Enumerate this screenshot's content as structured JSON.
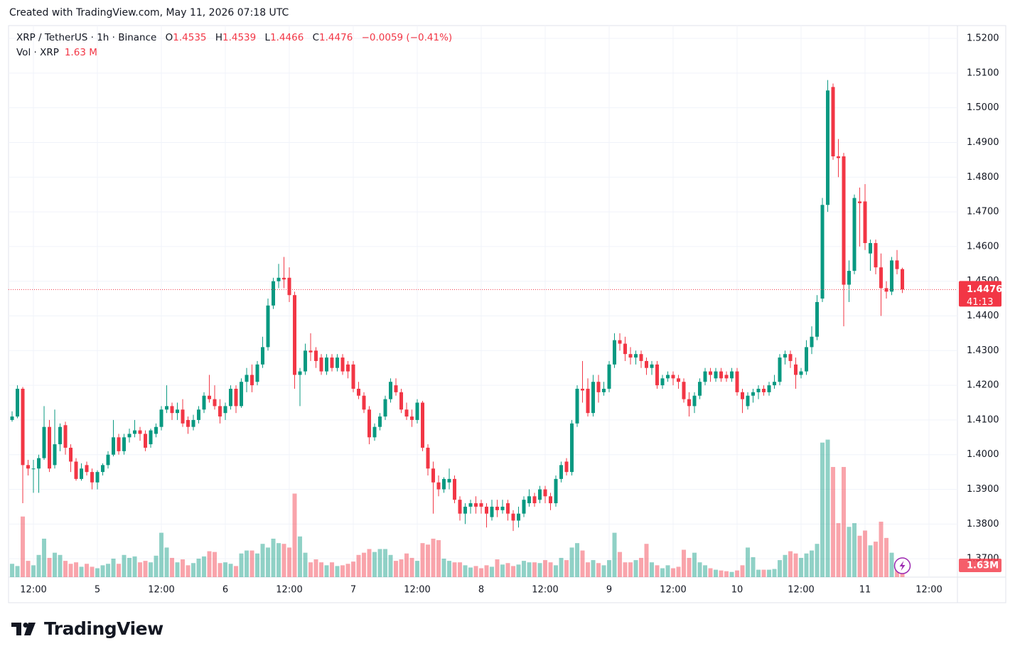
{
  "created": "Created with TradingView.com, May 11, 2026 07:18 UTC",
  "brand": "TradingView",
  "chart_data": {
    "type": "candlestick",
    "symbol": "XRP / TetherUS · 1h · Binance",
    "legend": {
      "o": "O",
      "h": "H",
      "l": "L",
      "c": "C",
      "change": "−0.0059 (−0.41%)"
    },
    "volume_title": "Vol · XRP",
    "volume_legend_value": "1.63 M",
    "volume_badge": "1.63M",
    "countdown": "41:13",
    "up_color": "#089981",
    "down_color": "#f23645",
    "grid": true,
    "open": [
      1.41,
      1.411,
      1.419,
      1.397,
      1.396,
      1.396,
      1.399,
      1.408,
      1.397,
      1.403,
      1.4085,
      1.402,
      1.398,
      1.393,
      1.397,
      1.395,
      1.392,
      1.395,
      1.397,
      1.4,
      1.405,
      1.401,
      1.405,
      1.406,
      1.407,
      1.406,
      1.403,
      1.406,
      1.408,
      1.413,
      1.414,
      1.412,
      1.413,
      1.41,
      1.408,
      1.41,
      1.413,
      1.417,
      1.416,
      1.414,
      1.412,
      1.414,
      1.419,
      1.414,
      1.421,
      1.423,
      1.421,
      1.426,
      1.431,
      1.443,
      1.45,
      1.451,
      1.451,
      1.446,
      1.423,
      1.424,
      1.43,
      1.43,
      1.428,
      1.424,
      1.428,
      1.425,
      1.428,
      1.426,
      1.426,
      1.419,
      1.417,
      1.413,
      1.405,
      1.408,
      1.411,
      1.416,
      1.42,
      1.418,
      1.413,
      1.411,
      1.41,
      1.415,
      1.402,
      1.396,
      1.392,
      1.39,
      1.392,
      1.393,
      1.387,
      1.383,
      1.385,
      1.386,
      1.386,
      1.385,
      1.382,
      1.385,
      1.384,
      1.386,
      1.383,
      1.381,
      1.383,
      1.386,
      1.388,
      1.387,
      1.39,
      1.388,
      1.386,
      1.393,
      1.398,
      1.395,
      1.409,
      1.419,
      1.419,
      1.412,
      1.421,
      1.418,
      1.419,
      1.426,
      1.433,
      1.432,
      1.429,
      1.428,
      1.429,
      1.427,
      1.425,
      1.426,
      1.42,
      1.422,
      1.423,
      1.422,
      1.421,
      1.416,
      1.414,
      1.417,
      1.421,
      1.424,
      1.422,
      1.424,
      1.423,
      1.422,
      1.424,
      1.418,
      1.414,
      1.417,
      1.418,
      1.419,
      1.418,
      1.42,
      1.421,
      1.428,
      1.429,
      1.426,
      1.423,
      1.424,
      1.431,
      1.434,
      1.445,
      1.472,
      1.506,
      1.486,
      1.486,
      1.449,
      1.453,
      1.473,
      1.473,
      1.458,
      1.461,
      1.454,
      1.448,
      1.447,
      1.456,
      1.4535
    ],
    "high": [
      1.4125,
      1.42,
      1.4195,
      1.3985,
      1.3985,
      1.4,
      1.414,
      1.41,
      1.413,
      1.409,
      1.4095,
      1.403,
      1.399,
      1.3975,
      1.398,
      1.396,
      1.3955,
      1.3975,
      1.401,
      1.41,
      1.406,
      1.406,
      1.4075,
      1.41,
      1.408,
      1.407,
      1.4075,
      1.409,
      1.414,
      1.42,
      1.415,
      1.415,
      1.416,
      1.411,
      1.4115,
      1.414,
      1.418,
      1.423,
      1.42,
      1.416,
      1.415,
      1.42,
      1.42,
      1.422,
      1.425,
      1.426,
      1.427,
      1.434,
      1.445,
      1.451,
      1.455,
      1.457,
      1.454,
      1.447,
      1.425,
      1.432,
      1.435,
      1.431,
      1.429,
      1.429,
      1.429,
      1.429,
      1.429,
      1.427,
      1.427,
      1.421,
      1.418,
      1.414,
      1.409,
      1.412,
      1.417,
      1.422,
      1.422,
      1.419,
      1.415,
      1.413,
      1.416,
      1.4155,
      1.403,
      1.398,
      1.394,
      1.3935,
      1.396,
      1.394,
      1.388,
      1.386,
      1.387,
      1.388,
      1.387,
      1.386,
      1.387,
      1.387,
      1.387,
      1.387,
      1.384,
      1.385,
      1.388,
      1.39,
      1.389,
      1.391,
      1.391,
      1.389,
      1.394,
      1.398,
      1.399,
      1.41,
      1.42,
      1.427,
      1.422,
      1.423,
      1.423,
      1.421,
      1.427,
      1.435,
      1.435,
      1.434,
      1.431,
      1.43,
      1.43,
      1.428,
      1.427,
      1.427,
      1.423,
      1.424,
      1.424,
      1.423,
      1.422,
      1.418,
      1.418,
      1.422,
      1.425,
      1.425,
      1.425,
      1.425,
      1.424,
      1.425,
      1.425,
      1.419,
      1.418,
      1.419,
      1.42,
      1.42,
      1.421,
      1.423,
      1.429,
      1.43,
      1.43,
      1.428,
      1.425,
      1.433,
      1.437,
      1.446,
      1.474,
      1.508,
      1.507,
      1.491,
      1.487,
      1.456,
      1.475,
      1.477,
      1.478,
      1.462,
      1.462,
      1.458,
      1.45,
      1.457,
      1.459,
      1.4539
    ],
    "low": [
      1.4095,
      1.4105,
      1.386,
      1.394,
      1.389,
      1.389,
      1.3985,
      1.395,
      1.396,
      1.401,
      1.4,
      1.395,
      1.3925,
      1.3925,
      1.394,
      1.39,
      1.39,
      1.394,
      1.396,
      1.3995,
      1.4,
      1.4,
      1.4035,
      1.405,
      1.404,
      1.401,
      1.402,
      1.405,
      1.407,
      1.412,
      1.41,
      1.41,
      1.408,
      1.406,
      1.407,
      1.409,
      1.412,
      1.415,
      1.413,
      1.409,
      1.41,
      1.413,
      1.412,
      1.4135,
      1.418,
      1.418,
      1.42,
      1.425,
      1.43,
      1.442,
      1.448,
      1.448,
      1.444,
      1.419,
      1.414,
      1.423,
      1.427,
      1.425,
      1.423,
      1.423,
      1.424,
      1.424,
      1.423,
      1.422,
      1.418,
      1.416,
      1.412,
      1.403,
      1.404,
      1.407,
      1.41,
      1.415,
      1.417,
      1.412,
      1.41,
      1.408,
      1.409,
      1.401,
      1.394,
      1.383,
      1.388,
      1.389,
      1.39,
      1.386,
      1.381,
      1.38,
      1.383,
      1.383,
      1.383,
      1.379,
      1.381,
      1.382,
      1.383,
      1.381,
      1.378,
      1.379,
      1.382,
      1.385,
      1.385,
      1.386,
      1.386,
      1.384,
      1.385,
      1.392,
      1.394,
      1.394,
      1.408,
      1.415,
      1.411,
      1.411,
      1.415,
      1.417,
      1.418,
      1.425,
      1.43,
      1.427,
      1.426,
      1.426,
      1.425,
      1.423,
      1.423,
      1.419,
      1.419,
      1.421,
      1.42,
      1.419,
      1.415,
      1.411,
      1.412,
      1.416,
      1.42,
      1.421,
      1.421,
      1.421,
      1.421,
      1.421,
      1.417,
      1.412,
      1.413,
      1.415,
      1.416,
      1.417,
      1.417,
      1.419,
      1.42,
      1.426,
      1.425,
      1.419,
      1.422,
      1.423,
      1.429,
      1.433,
      1.444,
      1.47,
      1.485,
      1.48,
      1.437,
      1.444,
      1.452,
      1.46,
      1.459,
      1.453,
      1.452,
      1.44,
      1.445,
      1.446,
      1.452,
      1.4466
    ],
    "close": [
      1.411,
      1.419,
      1.397,
      1.396,
      1.396,
      1.399,
      1.408,
      1.396,
      1.403,
      1.408,
      1.402,
      1.398,
      1.393,
      1.396,
      1.395,
      1.392,
      1.395,
      1.397,
      1.4,
      1.405,
      1.401,
      1.405,
      1.406,
      1.407,
      1.406,
      1.402,
      1.407,
      1.408,
      1.413,
      1.414,
      1.412,
      1.413,
      1.409,
      1.408,
      1.41,
      1.413,
      1.417,
      1.416,
      1.414,
      1.411,
      1.414,
      1.419,
      1.414,
      1.421,
      1.423,
      1.42,
      1.426,
      1.431,
      1.443,
      1.45,
      1.451,
      1.4505,
      1.446,
      1.423,
      1.424,
      1.43,
      1.4295,
      1.427,
      1.424,
      1.428,
      1.425,
      1.428,
      1.424,
      1.424,
      1.419,
      1.417,
      1.413,
      1.405,
      1.408,
      1.411,
      1.416,
      1.421,
      1.418,
      1.413,
      1.411,
      1.41,
      1.415,
      1.402,
      1.396,
      1.392,
      1.39,
      1.393,
      1.393,
      1.387,
      1.383,
      1.385,
      1.386,
      1.385,
      1.385,
      1.383,
      1.385,
      1.384,
      1.385,
      1.383,
      1.381,
      1.383,
      1.387,
      1.388,
      1.386,
      1.39,
      1.388,
      1.386,
      1.393,
      1.397,
      1.395,
      1.409,
      1.419,
      1.4185,
      1.412,
      1.421,
      1.418,
      1.419,
      1.426,
      1.433,
      1.432,
      1.429,
      1.428,
      1.429,
      1.427,
      1.425,
      1.426,
      1.42,
      1.422,
      1.423,
      1.422,
      1.421,
      1.416,
      1.414,
      1.417,
      1.421,
      1.424,
      1.423,
      1.424,
      1.422,
      1.422,
      1.424,
      1.418,
      1.416,
      1.417,
      1.418,
      1.419,
      1.418,
      1.42,
      1.421,
      1.428,
      1.429,
      1.427,
      1.423,
      1.424,
      1.431,
      1.434,
      1.444,
      1.472,
      1.505,
      1.486,
      1.4855,
      1.449,
      1.453,
      1.474,
      1.4725,
      1.461,
      1.461,
      1.454,
      1.448,
      1.447,
      1.456,
      1.4535,
      1.4476
    ],
    "volume": [
      1.8,
      1.5,
      8.2,
      2.2,
      1.6,
      3,
      5.2,
      2.6,
      3.3,
      3,
      2.2,
      1.8,
      2,
      1.4,
      1.8,
      1.4,
      1.2,
      1.6,
      1.8,
      2.5,
      1.8,
      3,
      2.6,
      2.8,
      2,
      2.2,
      2,
      2.9,
      6,
      4,
      2.6,
      2,
      2.4,
      1.6,
      1.9,
      2.5,
      2.8,
      3.5,
      3.4,
      1.9,
      2,
      1.8,
      1.5,
      3.2,
      3.6,
      3.6,
      3.2,
      4.5,
      4,
      5.2,
      4.6,
      4.5,
      4,
      11.3,
      5.5,
      3.3,
      2,
      2.4,
      2,
      1.6,
      2,
      1.5,
      1.6,
      1.8,
      2.1,
      3,
      3.3,
      3.8,
      3.4,
      3.8,
      3.8,
      3,
      2.2,
      2.4,
      3.2,
      2.6,
      2.2,
      4.6,
      4.4,
      5.2,
      5,
      2.5,
      2.2,
      2,
      2,
      1.6,
      1.3,
      1.5,
      1.2,
      1.6,
      1.4,
      2.4,
      1.7,
      1.9,
      1.5,
      1.7,
      2.2,
      2,
      2,
      1.9,
      2.3,
      2,
      1.6,
      2.6,
      2.3,
      4,
      4.6,
      3.6,
      2,
      2.3,
      1.9,
      1.6,
      2.3,
      6,
      3.4,
      2,
      2,
      2.3,
      2.6,
      4.5,
      2,
      1.6,
      1.2,
      1.6,
      1.2,
      1.4,
      3.7,
      2.6,
      3.3,
      2,
      1.6,
      1.2,
      1,
      0.9,
      0.8,
      0.7,
      0.9,
      1.6,
      4,
      2.7,
      1,
      1,
      1,
      1.1,
      2.3,
      3,
      3.5,
      3.2,
      2.6,
      3.2,
      3.6,
      4.5,
      18.2,
      18.6,
      14.9,
      7.3,
      14.9,
      6.8,
      7.3,
      5.6,
      6.3,
      4.3,
      4.8,
      7.5,
      5.3,
      3.3,
      2,
      1.63
    ],
    "xlim": [
      -0.67,
      177.33
    ],
    "xticks": [
      {
        "value": 4,
        "label": "12:00"
      },
      {
        "value": 16,
        "label": "5"
      },
      {
        "value": 28,
        "label": "12:00"
      },
      {
        "value": 40,
        "label": "6"
      },
      {
        "value": 52,
        "label": "12:00"
      },
      {
        "value": 64,
        "label": "7"
      },
      {
        "value": 76,
        "label": "12:00"
      },
      {
        "value": 88,
        "label": "8"
      },
      {
        "value": 100,
        "label": "12:00"
      },
      {
        "value": 112,
        "label": "9"
      },
      {
        "value": 124,
        "label": "12:00"
      },
      {
        "value": 136,
        "label": "10"
      },
      {
        "value": 148,
        "label": "12:00"
      },
      {
        "value": 160,
        "label": "11"
      },
      {
        "value": 172,
        "label": "12:00"
      }
    ],
    "ylim": [
      1.3647,
      1.5237
    ],
    "yticks": [
      {
        "value": 1.52,
        "label": "1.5200"
      },
      {
        "value": 1.51,
        "label": "1.5100"
      },
      {
        "value": 1.5,
        "label": "1.5000"
      },
      {
        "value": 1.49,
        "label": "1.4900"
      },
      {
        "value": 1.48,
        "label": "1.4800"
      },
      {
        "value": 1.47,
        "label": "1.4700"
      },
      {
        "value": 1.46,
        "label": "1.4600"
      },
      {
        "value": 1.45,
        "label": "1.4500"
      },
      {
        "value": 1.44,
        "label": "1.4400"
      },
      {
        "value": 1.43,
        "label": "1.4300"
      },
      {
        "value": 1.42,
        "label": "1.4200"
      },
      {
        "value": 1.41,
        "label": "1.4100"
      },
      {
        "value": 1.4,
        "label": "1.4000"
      },
      {
        "value": 1.39,
        "label": "1.3900"
      },
      {
        "value": 1.38,
        "label": "1.3800"
      },
      {
        "value": 1.37,
        "label": "1.3700"
      }
    ],
    "volume_lim": [
      0,
      30
    ]
  }
}
